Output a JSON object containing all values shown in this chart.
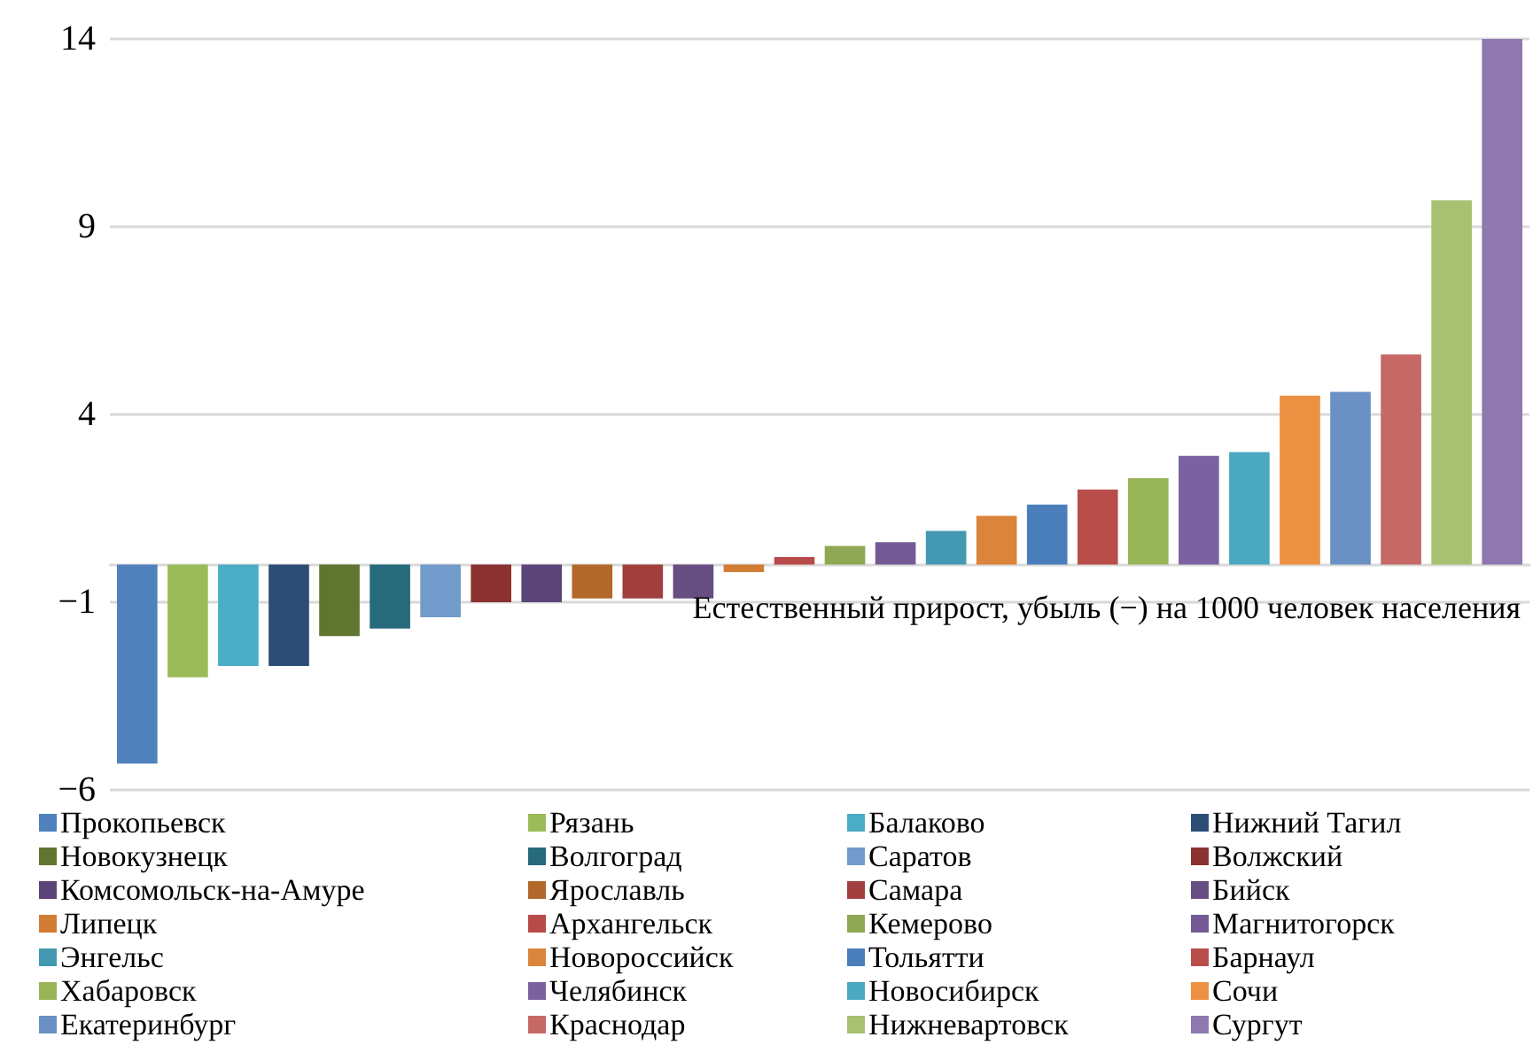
{
  "chart_data": {
    "type": "bar",
    "title": "Естественный прирост, убыль (−) на 1000 человек населения",
    "categories": [
      null
    ],
    "series": [
      {
        "name": "Прокопьевск",
        "color": "#4f81bd",
        "values": [
          -5.3
        ]
      },
      {
        "name": "Рязань",
        "color": "#9bbb59",
        "values": [
          -3.0
        ]
      },
      {
        "name": "Балаково",
        "color": "#4bacc6",
        "values": [
          -2.7
        ]
      },
      {
        "name": "Нижний Тагил",
        "color": "#2c4d75",
        "values": [
          -2.7
        ]
      },
      {
        "name": "Новокузнецк",
        "color": "#5f7530",
        "values": [
          -1.9
        ]
      },
      {
        "name": "Волгоград",
        "color": "#276a7c",
        "values": [
          -1.7
        ]
      },
      {
        "name": "Саратов",
        "color": "#729aca",
        "values": [
          -1.4
        ]
      },
      {
        "name": "Волжский",
        "color": "#8b3130",
        "values": [
          -1.0
        ]
      },
      {
        "name": "Комсомольск-на-Амуре",
        "color": "#5b4478",
        "values": [
          -1.0
        ]
      },
      {
        "name": "Ярославль",
        "color": "#b2682a",
        "values": [
          -0.9
        ]
      },
      {
        "name": "Самара",
        "color": "#a03f3d",
        "values": [
          -0.9
        ]
      },
      {
        "name": "Бийск",
        "color": "#664e83",
        "values": [
          -0.9
        ]
      },
      {
        "name": "Липецк",
        "color": "#d27d34",
        "values": [
          -0.2
        ]
      },
      {
        "name": "Архангельск",
        "color": "#b84b49",
        "values": [
          0.2
        ]
      },
      {
        "name": "Кемерово",
        "color": "#8ea853",
        "values": [
          0.5
        ]
      },
      {
        "name": "Магнитогорск",
        "color": "#735a94",
        "values": [
          0.6
        ]
      },
      {
        "name": "Энгельс",
        "color": "#4499b2",
        "values": [
          0.9
        ]
      },
      {
        "name": "Новороссийск",
        "color": "#db843b",
        "values": [
          1.3
        ]
      },
      {
        "name": "Тольятти",
        "color": "#4a7ebb",
        "values": [
          1.6
        ]
      },
      {
        "name": "Барнаул",
        "color": "#b94d4a",
        "values": [
          2.0
        ]
      },
      {
        "name": "Хабаровск",
        "color": "#97b556",
        "values": [
          2.3
        ]
      },
      {
        "name": "Челябинск",
        "color": "#7c61a0",
        "values": [
          2.9
        ]
      },
      {
        "name": "Новосибирск",
        "color": "#4ba8c1",
        "values": [
          3.0
        ]
      },
      {
        "name": "Сочи",
        "color": "#ec9042",
        "values": [
          4.5
        ]
      },
      {
        "name": "Екатеринбург",
        "color": "#6b90c4",
        "values": [
          4.6
        ]
      },
      {
        "name": "Краснодар",
        "color": "#c66966",
        "values": [
          5.6
        ]
      },
      {
        "name": "Нижневартовск",
        "color": "#a7c170",
        "values": [
          9.7
        ]
      },
      {
        "name": "Сургут",
        "color": "#8e78ae",
        "values": [
          14
        ]
      }
    ],
    "ylim": [
      -6,
      14
    ],
    "yticks": [
      -6,
      -1,
      4,
      9,
      14
    ],
    "grid": "y",
    "legend": "bottom",
    "tick_labels": "y"
  }
}
